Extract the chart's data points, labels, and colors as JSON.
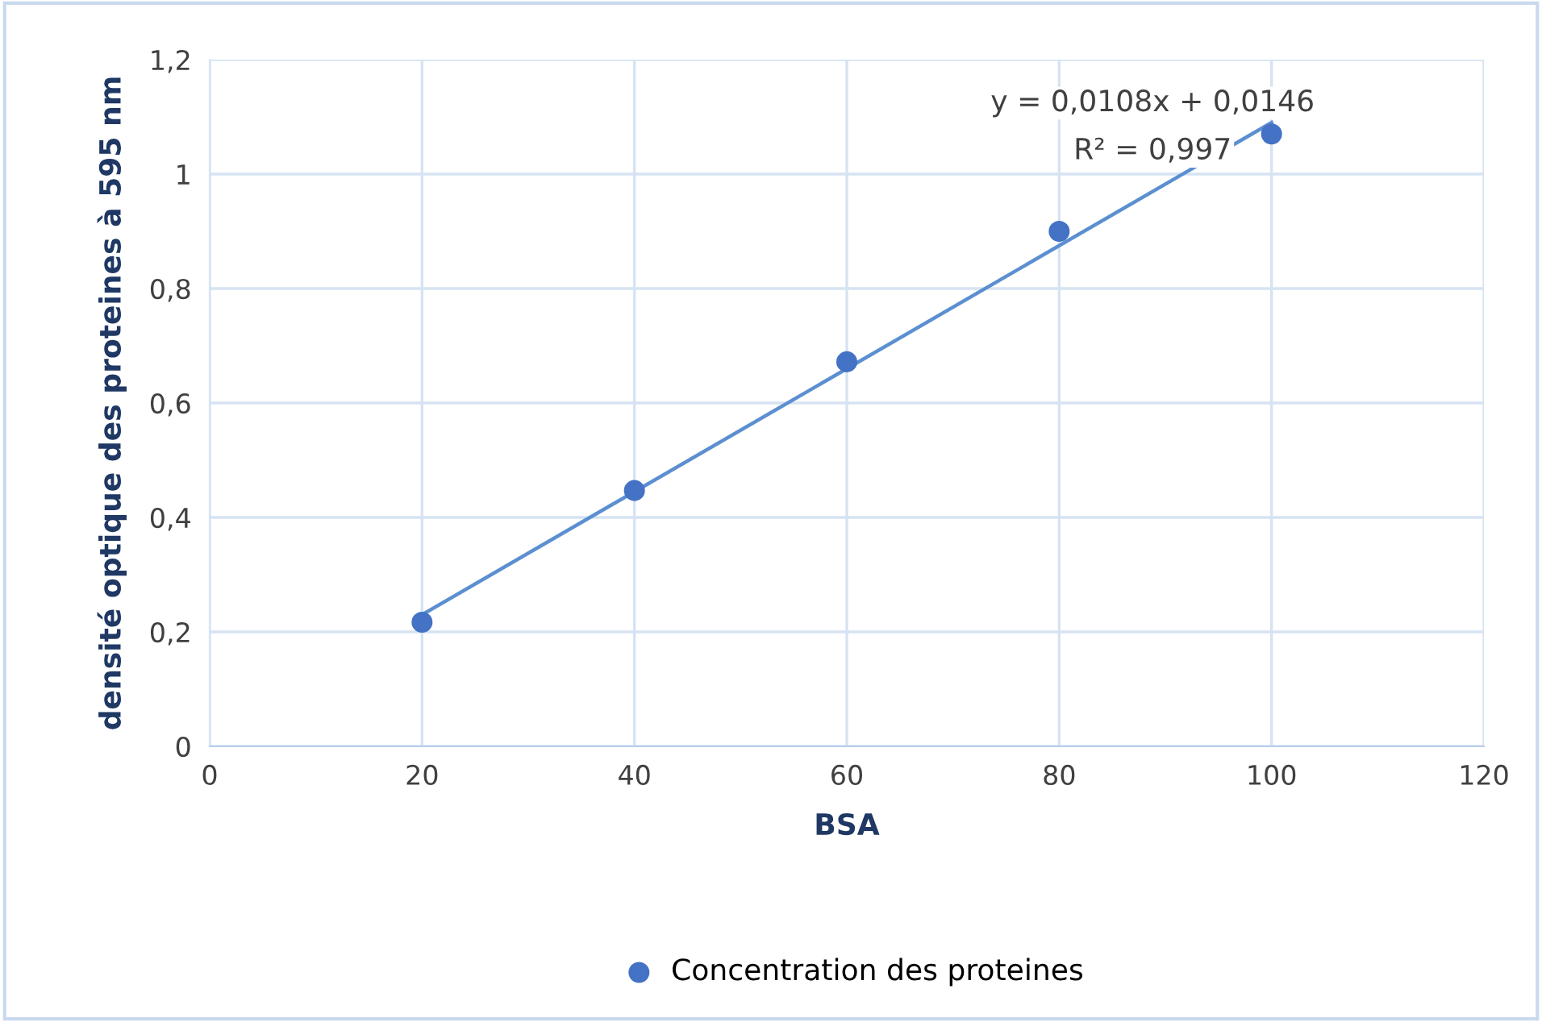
{
  "chart_data": {
    "type": "scatter",
    "xlabel": "BSA",
    "ylabel": "densité optique des proteines à 595 nm",
    "x": [
      20,
      40,
      60,
      80,
      100
    ],
    "series": [
      {
        "name": "Concentration des proteines",
        "color": "#4472c4",
        "values": [
          0.217,
          0.447,
          0.672,
          0.9,
          1.07
        ],
        "marker": "circle"
      },
      {
        "type": "line",
        "color": "#5b8fd0",
        "x": [
          20,
          100
        ],
        "values": [
          0.23,
          1.09
        ],
        "marker": "none",
        "line_style": "solid"
      }
    ],
    "annotations": [
      "y = 0,0108x + 0,0146",
      "R² = 0,997"
    ],
    "xlim": [
      0,
      120
    ],
    "xticks": [
      0,
      20,
      40,
      60,
      80,
      100,
      120
    ],
    "ylim": [
      0,
      1.2
    ],
    "yticks": [
      0,
      {
        "value": 0.2,
        "label": "0,2"
      },
      {
        "value": 0.4,
        "label": "0,4"
      },
      {
        "value": 0.6,
        "label": "0,6"
      },
      {
        "value": 0.8,
        "label": "0,8"
      },
      1,
      {
        "value": 1.2,
        "label": "1,2"
      }
    ],
    "grid": true,
    "legend": "bottom"
  }
}
